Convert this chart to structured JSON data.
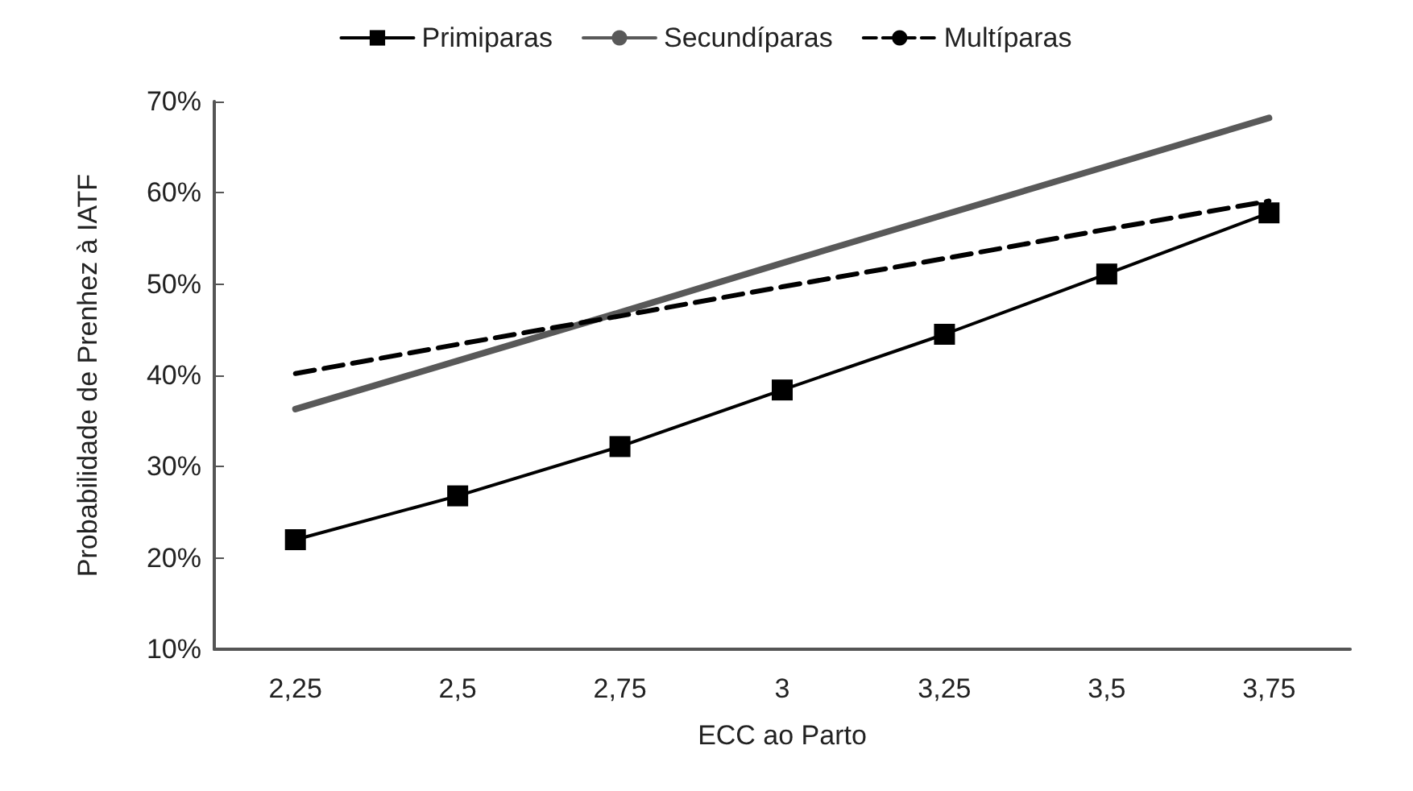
{
  "chart_data": {
    "type": "line",
    "xlabel": "ECC ao Parto",
    "ylabel": "Probabilidade de Prenhez à IATF",
    "categories": [
      "2,25",
      "2,5",
      "2,75",
      "3",
      "3,25",
      "3,5",
      "3,75"
    ],
    "series": [
      {
        "name": "Primiparas",
        "color": "#000000",
        "marker": "square",
        "line_style": "solid",
        "values": [
          22.0,
          26.8,
          32.2,
          38.4,
          44.5,
          51.1,
          57.8
        ]
      },
      {
        "name": "Secundíparas",
        "color": "#595959",
        "marker": "none",
        "line_style": "solid",
        "values": [
          36.3,
          41.6,
          46.9,
          52.3,
          57.6,
          62.9,
          68.2
        ]
      },
      {
        "name": "Multíparas",
        "color": "#000000",
        "marker": "none",
        "line_style": "dashed",
        "values": [
          40.2,
          43.4,
          46.5,
          49.7,
          52.8,
          56.0,
          59.1
        ]
      }
    ],
    "ylim": [
      10,
      70
    ],
    "yticks": [
      {
        "value": 10,
        "label": "10%"
      },
      {
        "value": 20,
        "label": "20%"
      },
      {
        "value": 30,
        "label": "30%"
      },
      {
        "value": 40,
        "label": "40%"
      },
      {
        "value": 50,
        "label": "50%"
      },
      {
        "value": 60,
        "label": "60%"
      },
      {
        "value": 70,
        "label": "70%"
      }
    ],
    "grid": false,
    "legend": "top"
  }
}
